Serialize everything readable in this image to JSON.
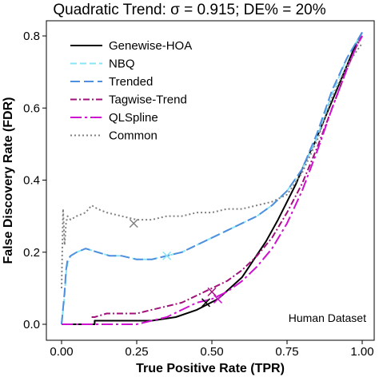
{
  "chart_data": {
    "type": "line",
    "title": "Quadratic Trend: σ = 0.915; DE% = 20%",
    "xlabel": "True Positive Rate (TPR)",
    "ylabel": "False Discovery Rate (FDR)",
    "xlim": [
      0,
      1
    ],
    "ylim": [
      0,
      0.85
    ],
    "x_ticks": [
      0.0,
      0.25,
      0.5,
      0.75,
      1.0
    ],
    "x_tick_labels": [
      "0.00",
      "0.25",
      "0.50",
      "0.75",
      "1.00"
    ],
    "y_ticks": [
      0.0,
      0.2,
      0.4,
      0.6,
      0.8
    ],
    "y_tick_labels": [
      "0.0",
      "0.2",
      "0.4",
      "0.6",
      "0.8"
    ],
    "grid": false,
    "legend_position": "top-left",
    "annotation": "Human Dataset",
    "series": [
      {
        "name": "Genewise-HOA",
        "color": "#000000",
        "dash": "",
        "width": 2,
        "x": [
          0,
          0.11,
          0.11,
          0.2,
          0.3,
          0.38,
          0.45,
          0.52,
          0.56,
          0.6,
          0.64,
          0.68,
          0.72,
          0.75,
          0.78,
          0.81,
          0.84,
          0.87,
          0.9,
          0.93,
          0.96,
          0.98,
          1.0
        ],
        "y": [
          0.0,
          0.0,
          0.01,
          0.01,
          0.01,
          0.02,
          0.04,
          0.07,
          0.1,
          0.13,
          0.18,
          0.23,
          0.29,
          0.34,
          0.39,
          0.45,
          0.5,
          0.56,
          0.62,
          0.68,
          0.74,
          0.78,
          0.81
        ],
        "marker": [
          0.48,
          0.06
        ]
      },
      {
        "name": "NBQ",
        "color": "#88e5f5",
        "dash": "8,4",
        "width": 2,
        "x": [
          0.0,
          0.01,
          0.015,
          0.02,
          0.03,
          0.05,
          0.08,
          0.12,
          0.16,
          0.2,
          0.25,
          0.3,
          0.35,
          0.4,
          0.45,
          0.5,
          0.55,
          0.6,
          0.65,
          0.7,
          0.75,
          0.8,
          0.85,
          0.9,
          0.95,
          1.0
        ],
        "y": [
          0.0,
          0.08,
          0.14,
          0.17,
          0.19,
          0.2,
          0.21,
          0.2,
          0.19,
          0.19,
          0.18,
          0.18,
          0.19,
          0.2,
          0.22,
          0.24,
          0.26,
          0.28,
          0.3,
          0.33,
          0.37,
          0.43,
          0.52,
          0.64,
          0.74,
          0.81
        ],
        "marker": [
          0.35,
          0.19
        ]
      },
      {
        "name": "Trended",
        "color": "#4f8fe0",
        "dash": "12,5",
        "width": 2,
        "x": [
          0.0,
          0.01,
          0.015,
          0.02,
          0.03,
          0.05,
          0.08,
          0.12,
          0.16,
          0.2,
          0.25,
          0.3,
          0.35,
          0.4,
          0.45,
          0.5,
          0.55,
          0.6,
          0.65,
          0.7,
          0.75,
          0.8,
          0.85,
          0.9,
          0.95,
          1.0
        ],
        "y": [
          0.0,
          0.09,
          0.15,
          0.18,
          0.19,
          0.2,
          0.21,
          0.2,
          0.19,
          0.19,
          0.18,
          0.18,
          0.19,
          0.2,
          0.22,
          0.24,
          0.26,
          0.28,
          0.3,
          0.33,
          0.37,
          0.43,
          0.53,
          0.65,
          0.74,
          0.81
        ]
      },
      {
        "name": "Tagwise-Trend",
        "color": "#a0107a",
        "dash": "8,3,2,3",
        "width": 2,
        "x": [
          0.1,
          0.11,
          0.15,
          0.2,
          0.25,
          0.3,
          0.35,
          0.4,
          0.45,
          0.5,
          0.55,
          0.6,
          0.65,
          0.7,
          0.75,
          0.8,
          0.85,
          0.9,
          0.95,
          0.98,
          1.0
        ],
        "y": [
          0.02,
          0.02,
          0.03,
          0.03,
          0.03,
          0.04,
          0.05,
          0.06,
          0.08,
          0.1,
          0.12,
          0.15,
          0.19,
          0.24,
          0.31,
          0.39,
          0.49,
          0.6,
          0.71,
          0.77,
          0.8
        ],
        "marker": [
          0.5,
          0.09
        ]
      },
      {
        "name": "QLSpline",
        "color": "#d010d0",
        "dash": "14,4,3,4",
        "width": 2,
        "x": [
          0,
          0.25,
          0.3,
          0.35,
          0.4,
          0.45,
          0.5,
          0.55,
          0.6,
          0.65,
          0.7,
          0.75,
          0.8,
          0.85,
          0.9,
          0.95,
          0.98,
          1.0
        ],
        "y": [
          0.0,
          0.0,
          0.01,
          0.02,
          0.04,
          0.06,
          0.07,
          0.09,
          0.12,
          0.16,
          0.21,
          0.28,
          0.37,
          0.48,
          0.6,
          0.71,
          0.77,
          0.8
        ],
        "marker": [
          0.52,
          0.07
        ]
      },
      {
        "name": "Common",
        "color": "#808080",
        "dash": "2,3",
        "width": 2,
        "x": [
          0.0,
          0.005,
          0.01,
          0.015,
          0.02,
          0.03,
          0.05,
          0.08,
          0.1,
          0.12,
          0.15,
          0.2,
          0.25,
          0.3,
          0.35,
          0.4,
          0.45,
          0.5,
          0.55,
          0.6,
          0.65,
          0.7,
          0.75,
          0.8,
          0.85,
          0.9,
          0.95,
          1.0
        ],
        "y": [
          0.1,
          0.32,
          0.22,
          0.28,
          0.3,
          0.29,
          0.3,
          0.31,
          0.33,
          0.32,
          0.31,
          0.3,
          0.29,
          0.29,
          0.3,
          0.3,
          0.31,
          0.31,
          0.32,
          0.32,
          0.33,
          0.34,
          0.36,
          0.42,
          0.51,
          0.63,
          0.72,
          0.78
        ],
        "marker": [
          0.24,
          0.28
        ]
      }
    ]
  }
}
